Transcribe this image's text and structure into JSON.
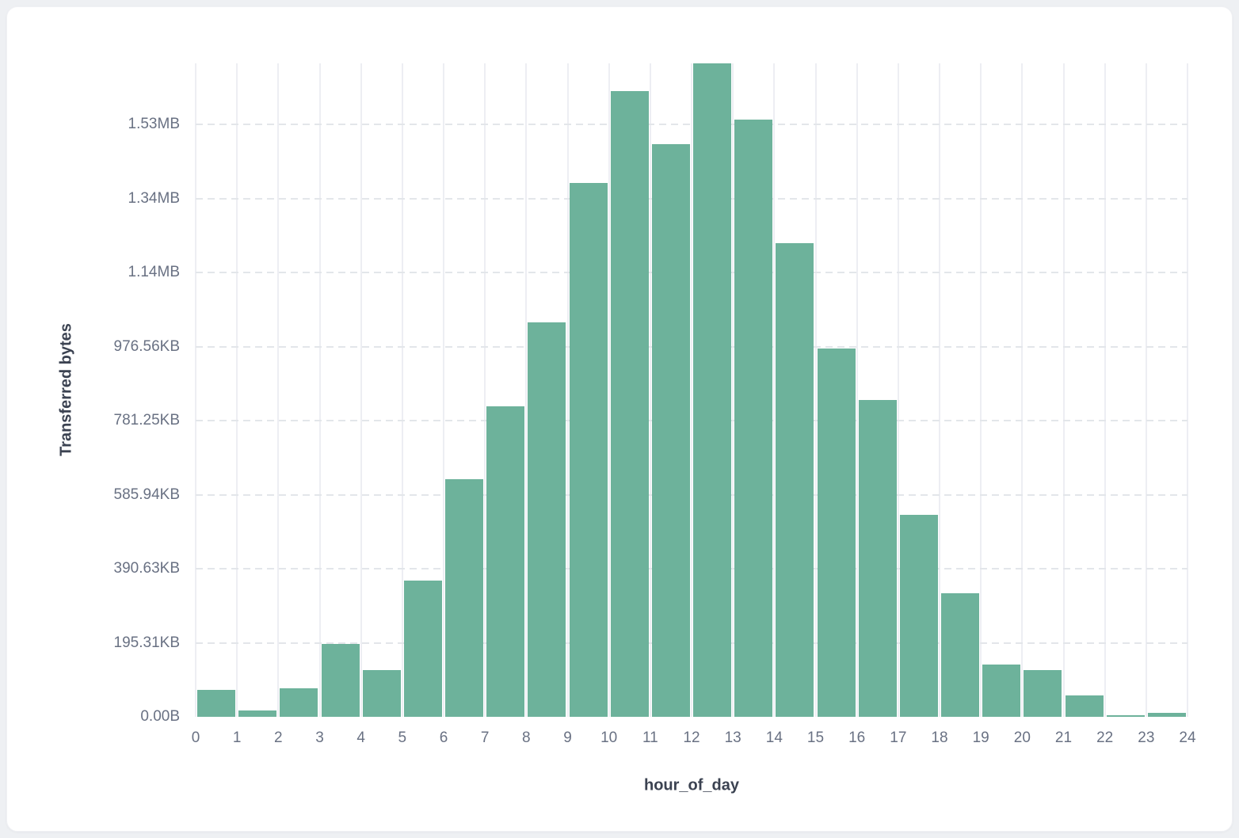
{
  "page": {
    "background_color": "#eef0f3",
    "card_background_color": "#ffffff"
  },
  "chart_data": {
    "type": "bar",
    "title": "",
    "xlabel": "hour_of_day",
    "ylabel": "Transferred bytes",
    "bar_color": "#6db29b",
    "grid": "on",
    "legend": "none",
    "categories": [
      0,
      1,
      2,
      3,
      4,
      5,
      6,
      7,
      8,
      9,
      10,
      11,
      12,
      13,
      14,
      15,
      16,
      17,
      18,
      19,
      20,
      21,
      22,
      23
    ],
    "values_kb": [
      71,
      16,
      75,
      192,
      123,
      359,
      626,
      819,
      1041,
      1409,
      1651,
      1511,
      1724,
      1575,
      1249,
      972,
      836,
      533,
      327,
      137,
      123,
      56,
      5,
      11
    ],
    "x_tick_labels": [
      "0",
      "1",
      "2",
      "3",
      "4",
      "5",
      "6",
      "7",
      "8",
      "9",
      "10",
      "11",
      "12",
      "13",
      "14",
      "15",
      "16",
      "17",
      "18",
      "19",
      "20",
      "21",
      "22",
      "23",
      "24"
    ],
    "y_tick_labels": [
      {
        "kb": 0,
        "label": "0.00B"
      },
      {
        "kb": 195.31,
        "label": "195.31KB"
      },
      {
        "kb": 390.63,
        "label": "390.63KB"
      },
      {
        "kb": 585.94,
        "label": "585.94KB"
      },
      {
        "kb": 781.25,
        "label": "781.25KB"
      },
      {
        "kb": 976.56,
        "label": "976.56KB"
      },
      {
        "kb": 1171.88,
        "label": "1.14MB"
      },
      {
        "kb": 1367.19,
        "label": "1.34MB"
      },
      {
        "kb": 1562.5,
        "label": "1.53MB"
      }
    ],
    "xlim": [
      0,
      24
    ],
    "ylim_kb": [
      0,
      1724
    ]
  }
}
